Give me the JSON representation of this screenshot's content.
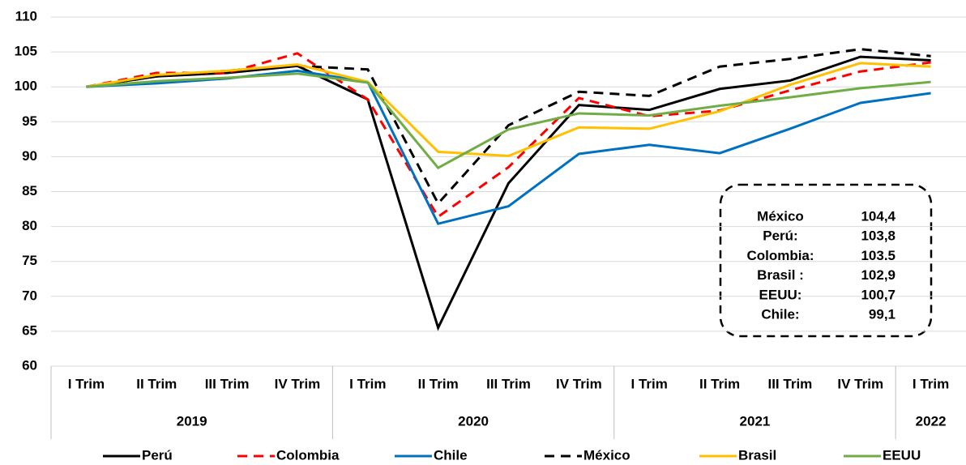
{
  "chart_data": {
    "type": "line",
    "categories": [
      "I Trim",
      "II Trim",
      "III Trim",
      "IV Trim",
      "I Trim",
      "II Trim",
      "III Trim",
      "IV Trim",
      "I Trim",
      "II Trim",
      "III Trim",
      "IV Trim",
      "I Trim"
    ],
    "groups": [
      {
        "label": "2019",
        "span": 4
      },
      {
        "label": "2020",
        "span": 4
      },
      {
        "label": "2021",
        "span": 4
      },
      {
        "label": "2022",
        "span": 1
      }
    ],
    "ylim": [
      60,
      110
    ],
    "yticks": [
      60,
      65,
      70,
      75,
      80,
      85,
      90,
      95,
      100,
      105,
      110
    ],
    "grid": true,
    "legend": "bottom",
    "series": [
      {
        "name": "Perú",
        "color": "#000000",
        "dashed": false,
        "values": [
          100,
          101.5,
          102,
          103,
          98.2,
          65.5,
          86.2,
          97.4,
          96.7,
          99.7,
          100.9,
          104.3,
          103.8
        ]
      },
      {
        "name": "Colombia",
        "color": "#ff0000",
        "dashed": true,
        "values": [
          100,
          102,
          102,
          104.8,
          98.2,
          81.4,
          88.5,
          98.4,
          95.8,
          96.6,
          99.5,
          102.2,
          103.5
        ]
      },
      {
        "name": "Chile",
        "color": "#0070c0",
        "dashed": false,
        "values": [
          100,
          100.5,
          101.2,
          102.3,
          100.7,
          80.4,
          82.9,
          90.4,
          91.7,
          90.5,
          94,
          97.7,
          99.1
        ]
      },
      {
        "name": "México",
        "color": "#000000",
        "dashed": true,
        "values": [
          100,
          101.5,
          102.3,
          103,
          102.5,
          83.3,
          94.5,
          99.3,
          98.7,
          102.9,
          104,
          105.4,
          104.4
        ]
      },
      {
        "name": "Brasil",
        "color": "#ffc000",
        "dashed": false,
        "values": [
          100,
          101.7,
          102.3,
          103.2,
          100.7,
          90.7,
          90.1,
          94.2,
          94,
          96.5,
          100.3,
          103.4,
          102.9
        ]
      },
      {
        "name": "EEUU",
        "color": "#70ad47",
        "dashed": false,
        "values": [
          100,
          100.8,
          101.3,
          101.9,
          100.6,
          88.4,
          93.9,
          96.2,
          95.9,
          97.3,
          98.5,
          99.8,
          100.7
        ]
      }
    ],
    "annotation": [
      {
        "label": "México",
        "value": "104,4"
      },
      {
        "label": "Perú:",
        "value": "103,8"
      },
      {
        "label": "Colombia:",
        "value": "103.5"
      },
      {
        "label": "Brasil :",
        "value": "102,9"
      },
      {
        "label": "EEUU:",
        "value": "100,7"
      },
      {
        "label": "Chile:",
        "value": "99,1"
      }
    ]
  }
}
